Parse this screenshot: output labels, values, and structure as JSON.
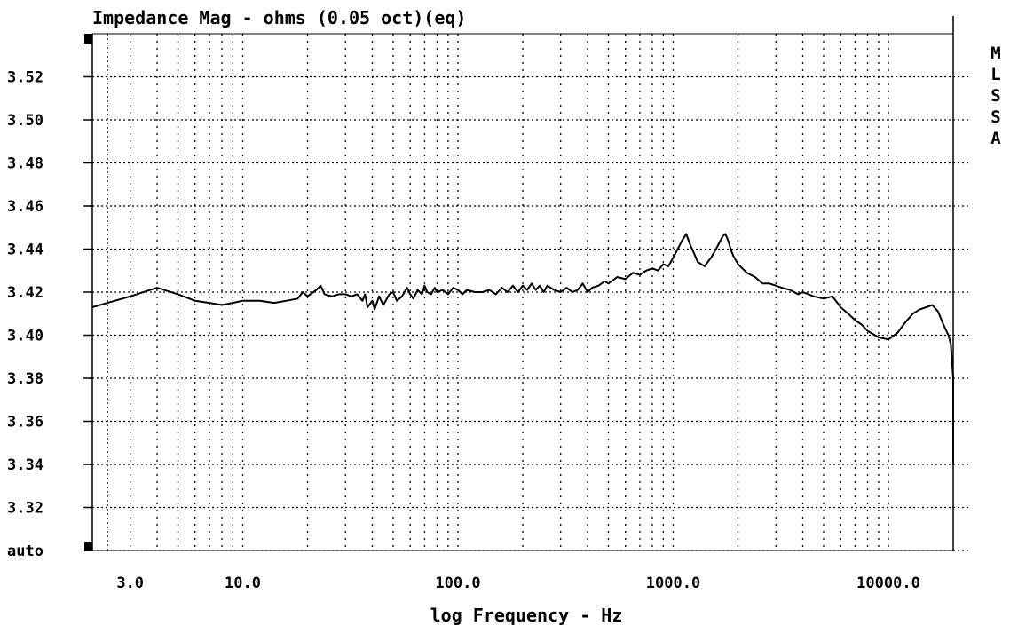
{
  "chart_data": {
    "type": "line",
    "title": "Impedance Mag - ohms (0.05 oct)(eq)",
    "xlabel": "log Frequency - Hz",
    "ylabel": "",
    "x_scale": "log",
    "xlim": [
      2,
      20000
    ],
    "ylim": [
      3.3,
      3.54
    ],
    "grid": true,
    "y_ticks": [
      3.52,
      3.5,
      3.48,
      3.46,
      3.44,
      3.42,
      3.4,
      3.38,
      3.36,
      3.34,
      3.32
    ],
    "y_tick_labels": [
      "3.52",
      "3.50",
      "3.48",
      "3.46",
      "3.44",
      "3.42",
      "3.40",
      "3.38",
      "3.36",
      "3.34",
      "3.32"
    ],
    "y_bottom_label": "auto",
    "x_ticks": [
      3,
      10,
      100,
      1000,
      10000
    ],
    "x_tick_labels": [
      "3.0",
      "10.0",
      "100.0",
      "1000.0",
      "10000.0"
    ],
    "side_label": [
      "M",
      "L",
      "S",
      "S",
      "A"
    ],
    "series": [
      {
        "x": [
          2,
          3,
          4,
          5,
          6,
          7,
          8,
          9,
          10,
          12,
          14,
          16,
          18,
          19,
          20,
          22,
          23,
          24,
          26,
          28,
          30,
          32,
          34,
          36,
          37,
          38,
          40,
          41,
          43,
          45,
          48,
          50,
          52,
          55,
          58,
          60,
          62,
          65,
          68,
          70,
          72,
          75,
          78,
          80,
          85,
          90,
          95,
          100,
          105,
          110,
          120,
          130,
          140,
          150,
          160,
          170,
          180,
          190,
          200,
          210,
          220,
          230,
          240,
          250,
          260,
          280,
          300,
          320,
          340,
          360,
          380,
          400,
          420,
          450,
          480,
          500,
          550,
          600,
          650,
          700,
          750,
          800,
          850,
          900,
          950,
          1000,
          1050,
          1100,
          1150,
          1200,
          1250,
          1300,
          1350,
          1400,
          1500,
          1600,
          1700,
          1750,
          1800,
          1850,
          1900,
          2000,
          2200,
          2400,
          2600,
          2800,
          3000,
          3200,
          3500,
          3800,
          4000,
          4500,
          5000,
          5500,
          6000,
          6500,
          7000,
          7500,
          8000,
          9000,
          10000,
          11000,
          12000,
          13000,
          14000,
          15000,
          16000,
          17000,
          18000,
          19000,
          19500,
          20000,
          20000
        ],
        "y": [
          3.413,
          3.418,
          3.422,
          3.419,
          3.416,
          3.415,
          3.414,
          3.415,
          3.416,
          3.416,
          3.415,
          3.416,
          3.417,
          3.42,
          3.418,
          3.421,
          3.423,
          3.419,
          3.418,
          3.419,
          3.419,
          3.418,
          3.419,
          3.416,
          3.419,
          3.413,
          3.416,
          3.412,
          3.418,
          3.414,
          3.419,
          3.42,
          3.416,
          3.418,
          3.422,
          3.419,
          3.417,
          3.421,
          3.419,
          3.423,
          3.42,
          3.419,
          3.422,
          3.42,
          3.421,
          3.419,
          3.422,
          3.421,
          3.419,
          3.421,
          3.42,
          3.42,
          3.421,
          3.419,
          3.422,
          3.42,
          3.423,
          3.42,
          3.423,
          3.421,
          3.424,
          3.421,
          3.423,
          3.42,
          3.423,
          3.421,
          3.42,
          3.422,
          3.42,
          3.421,
          3.424,
          3.42,
          3.422,
          3.423,
          3.425,
          3.424,
          3.427,
          3.426,
          3.429,
          3.428,
          3.43,
          3.431,
          3.43,
          3.433,
          3.432,
          3.436,
          3.44,
          3.444,
          3.447,
          3.442,
          3.438,
          3.434,
          3.433,
          3.432,
          3.436,
          3.441,
          3.446,
          3.447,
          3.444,
          3.44,
          3.437,
          3.433,
          3.429,
          3.427,
          3.424,
          3.424,
          3.423,
          3.422,
          3.421,
          3.419,
          3.42,
          3.418,
          3.417,
          3.418,
          3.413,
          3.41,
          3.407,
          3.405,
          3.402,
          3.399,
          3.398,
          3.401,
          3.406,
          3.41,
          3.412,
          3.413,
          3.414,
          3.411,
          3.405,
          3.4,
          3.396,
          3.38,
          3.34
        ]
      }
    ]
  }
}
